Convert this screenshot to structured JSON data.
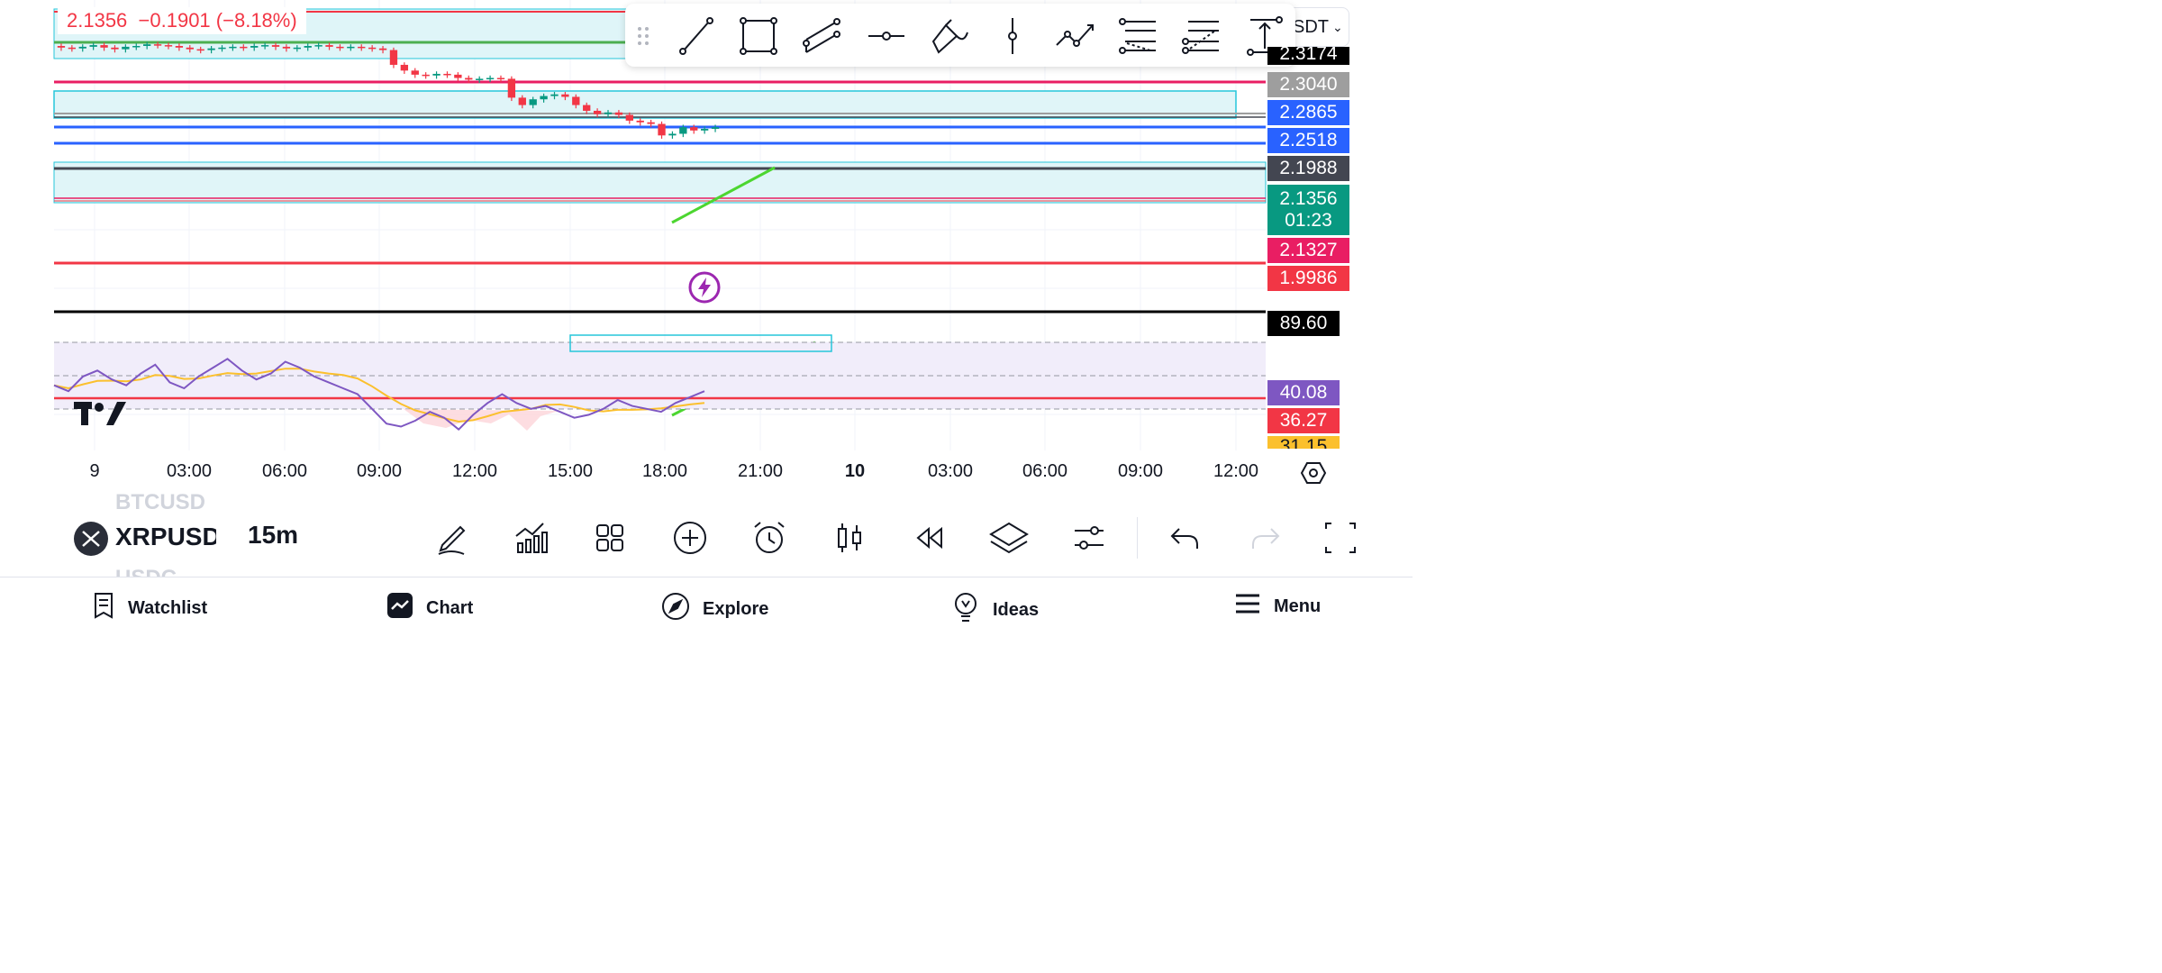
{
  "header": {
    "last_price": "2.1356",
    "change": "−0.1901",
    "change_pct": "(−8.18%)",
    "pair_suffix": "SDT"
  },
  "drawing_toolbar": {
    "tools": [
      "drag-handle-icon",
      "trend-line-icon",
      "rectangle-icon",
      "parallel-channel-icon",
      "horizontal-ray-icon",
      "brush-icon",
      "vertical-line-icon",
      "path-icon",
      "fib-retracement-icon",
      "fib-extension-icon",
      "long-position-icon"
    ]
  },
  "price_scale": {
    "top_partial": "2.3174",
    "labels": [
      {
        "value": "2.3040",
        "color": "#9e9e9e"
      },
      {
        "value": "2.2865",
        "color": "#2962ff"
      },
      {
        "value": "2.2518",
        "color": "#2962ff"
      },
      {
        "value": "2.1988",
        "color": "#434651"
      },
      {
        "value": "2.1356",
        "countdown": "01:23",
        "color": "#089981"
      },
      {
        "value": "2.1327",
        "color": "#e91e63"
      },
      {
        "value": "1.9986",
        "color": "#f23645"
      }
    ]
  },
  "rsi_scale": {
    "labels": [
      {
        "value": "89.60",
        "color": "#000000"
      },
      {
        "value": "40.08",
        "color": "#7e57c2"
      },
      {
        "value": "36.27",
        "color": "#f23645"
      },
      {
        "value": "31.15",
        "color": "#fbc02d"
      }
    ]
  },
  "time_axis": {
    "ticks": [
      {
        "label": "9",
        "bold": false
      },
      {
        "label": "03:00",
        "bold": false
      },
      {
        "label": "06:00",
        "bold": false
      },
      {
        "label": "09:00",
        "bold": false
      },
      {
        "label": "12:00",
        "bold": false
      },
      {
        "label": "15:00",
        "bold": false
      },
      {
        "label": "18:00",
        "bold": false
      },
      {
        "label": "21:00",
        "bold": false
      },
      {
        "label": "10",
        "bold": true
      },
      {
        "label": "03:00",
        "bold": false
      },
      {
        "label": "06:00",
        "bold": false
      },
      {
        "label": "09:00",
        "bold": false
      },
      {
        "label": "12:00",
        "bold": false
      }
    ]
  },
  "symbol_bar": {
    "symbol_above": "BTCUSD",
    "symbol": "XRPUSD",
    "symbol_below": "USDC",
    "interval": "15m",
    "controls": [
      "drawing-pen-icon",
      "indicators-icon",
      "layout-grid-icon",
      "add-icon",
      "alert-clock-icon",
      "candle-type-icon",
      "replay-icon",
      "layers-icon",
      "settings-sliders-icon",
      "undo-icon",
      "redo-icon",
      "fullscreen-icon"
    ]
  },
  "nav": {
    "items": [
      {
        "label": "Watchlist",
        "icon": "watchlist-icon"
      },
      {
        "label": "Chart",
        "icon": "chart-icon"
      },
      {
        "label": "Explore",
        "icon": "compass-icon"
      },
      {
        "label": "Ideas",
        "icon": "lightbulb-icon"
      },
      {
        "label": "Menu",
        "icon": "hamburger-icon"
      }
    ]
  },
  "chart_data": {
    "type": "candlestick",
    "interval": "15m",
    "x_range": [
      "9 00:00",
      "10 12:00"
    ],
    "ylim": [
      1.97,
      2.33
    ],
    "candles_close": [
      2.283,
      2.282,
      2.284,
      2.286,
      2.283,
      2.281,
      2.284,
      2.285,
      2.287,
      2.286,
      2.285,
      2.283,
      2.281,
      2.28,
      2.282,
      2.283,
      2.284,
      2.283,
      2.285,
      2.286,
      2.284,
      2.282,
      2.283,
      2.285,
      2.286,
      2.284,
      2.283,
      2.284,
      2.283,
      2.282,
      2.28,
      2.262,
      2.255,
      2.25,
      2.249,
      2.251,
      2.25,
      2.246,
      2.244,
      2.245,
      2.246,
      2.245,
      2.222,
      2.213,
      2.22,
      2.224,
      2.226,
      2.223,
      2.213,
      2.206,
      2.202,
      2.204,
      2.201,
      2.194,
      2.192,
      2.19,
      2.176,
      2.178,
      2.186,
      2.182,
      2.184,
      2.186
    ],
    "horizontal_levels": [
      2.3174,
      2.304,
      2.2865,
      2.2518,
      2.1988,
      2.1356,
      2.1327,
      1.9986
    ],
    "rsi_scale": [
      89.6,
      40.08,
      36.27,
      31.15
    ],
    "rsi_values": [
      44,
      42,
      47,
      49,
      46,
      44,
      48,
      51,
      45,
      43,
      47,
      50,
      53,
      49,
      46,
      48,
      52,
      50,
      47,
      45,
      43,
      41,
      36,
      31,
      30,
      32,
      35,
      33,
      29,
      34,
      38,
      41,
      38,
      36,
      37,
      35,
      33,
      34,
      36,
      39,
      37,
      36,
      35,
      38,
      40,
      42
    ]
  }
}
